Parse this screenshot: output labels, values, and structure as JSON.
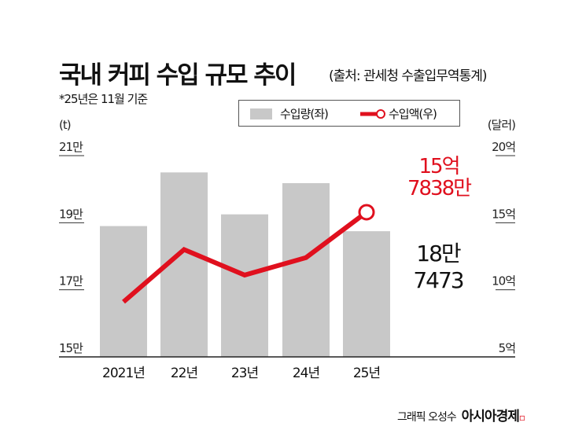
{
  "title": "국내 커피 수입 규모 추이",
  "source": "(출처: 관세청 수출입무역통계)",
  "note": "*25년은 11월 기준",
  "credit": {
    "author": "그래픽 오성수",
    "brand": "아시아경제"
  },
  "colors": {
    "bar": "#c8c8c8",
    "line": "#e0101e",
    "text": "#111111"
  },
  "chart_data": {
    "type": "bar+line",
    "categories": [
      "2021년",
      "22년",
      "23년",
      "24년",
      "25년"
    ],
    "series": [
      {
        "name": "수입량(좌)",
        "type": "bar",
        "axis": "left",
        "values": [
          189000,
          205000,
          192500,
          201800,
          187473
        ]
      },
      {
        "name": "수입액(우)",
        "type": "line",
        "axis": "right",
        "values": [
          910000000,
          1300000000,
          1110000000,
          1240000000,
          1578380000
        ]
      }
    ],
    "left_axis": {
      "unit": "(t)",
      "ylim": [
        150000,
        210000
      ],
      "ticks": [
        150000,
        170000,
        190000,
        210000
      ],
      "tick_labels": [
        "15만",
        "17만",
        "19만",
        "21만"
      ]
    },
    "right_axis": {
      "unit": "(달러)",
      "ylim": [
        500000000,
        2000000000
      ],
      "ticks": [
        500000000,
        1000000000,
        1500000000,
        2000000000
      ],
      "tick_labels": [
        "5억",
        "10억",
        "15억",
        "20억"
      ]
    },
    "annotations": {
      "line_last": [
        "15억",
        "7838만"
      ],
      "bar_last": [
        "18만",
        "7473"
      ]
    },
    "legend": "top-center"
  }
}
